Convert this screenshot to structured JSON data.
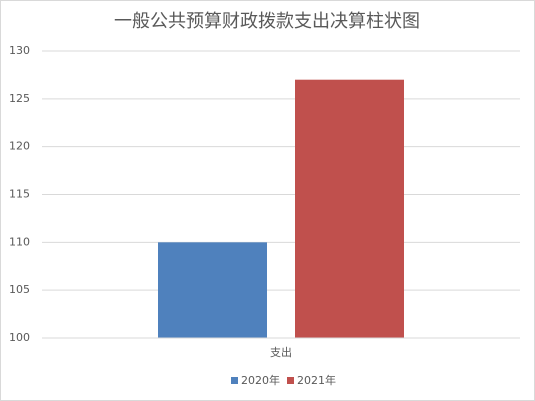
{
  "chart_data": {
    "type": "bar",
    "title": "一般公共预算财政拨款支出决算柱状图",
    "categories": [
      "支出"
    ],
    "series": [
      {
        "name": "2020年",
        "color": "#4f81bd",
        "values": [
          110
        ]
      },
      {
        "name": "2021年",
        "color": "#c0504d",
        "values": [
          127
        ]
      }
    ],
    "ylim": [
      100,
      130
    ],
    "yticks": [
      100,
      105,
      110,
      115,
      120,
      125,
      130
    ],
    "grid": true,
    "legend": "bottom"
  }
}
